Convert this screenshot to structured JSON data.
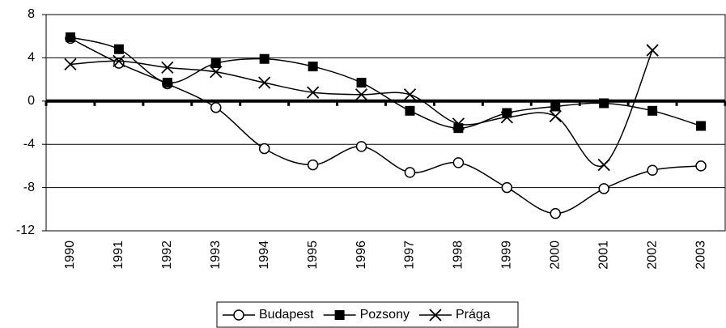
{
  "chart_data": {
    "type": "line",
    "categories": [
      "1990",
      "1991",
      "1992",
      "1993",
      "1994",
      "1995",
      "1996",
      "1997",
      "1998",
      "1999",
      "2000",
      "2001",
      "2002",
      "2003"
    ],
    "series": [
      {
        "name": "Budapest",
        "color": "#000000",
        "marker": "circle",
        "values": [
          5.8,
          3.5,
          1.6,
          -0.6,
          -4.4,
          -5.9,
          -4.2,
          -6.6,
          -5.7,
          -8.0,
          -10.4,
          -8.1,
          -6.4,
          -6.0
        ]
      },
      {
        "name": "Pozsony",
        "color": "#000000",
        "marker": "square",
        "values": [
          5.9,
          4.8,
          1.7,
          3.5,
          3.9,
          3.2,
          1.7,
          -0.9,
          -2.5,
          -1.1,
          -0.5,
          -0.2,
          -0.9,
          -2.3
        ]
      },
      {
        "name": "Prága",
        "color": "#000000",
        "marker": "x",
        "values": [
          3.4,
          3.7,
          3.1,
          2.7,
          1.7,
          0.8,
          0.6,
          0.6,
          -2.1,
          -1.5,
          -1.4,
          -5.9,
          4.7,
          null
        ]
      }
    ],
    "ylim": [
      -12,
      8
    ],
    "yticks": [
      -12,
      -8,
      -4,
      0,
      4,
      8
    ],
    "grid": true,
    "legend": "bottom"
  }
}
